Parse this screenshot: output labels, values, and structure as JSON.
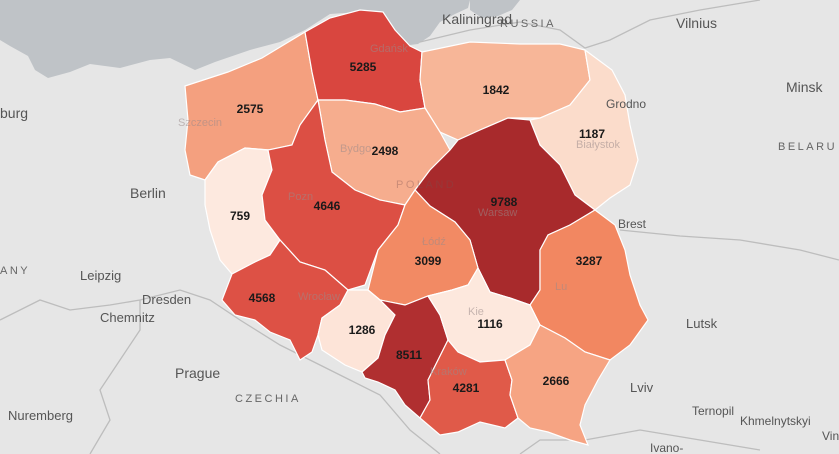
{
  "colors": {
    "sea": "#bfc3c7",
    "land": "#e6e6e6",
    "border": "#bdbdbd",
    "region_stroke": "#ffffff"
  },
  "cities": [
    {
      "id": "kaliningrad",
      "label": "Kaliningrad"
    },
    {
      "id": "vilnius",
      "label": "Vilnius"
    },
    {
      "id": "minsk",
      "label": "Minsk"
    },
    {
      "id": "grodno",
      "label": "Grodno"
    },
    {
      "id": "berlin",
      "label": "Berlin"
    },
    {
      "id": "leipzig",
      "label": "Leipzig"
    },
    {
      "id": "dresden",
      "label": "Dresden"
    },
    {
      "id": "chemnitz",
      "label": "Chemnitz"
    },
    {
      "id": "prague",
      "label": "Prague"
    },
    {
      "id": "nuremberg",
      "label": "Nuremberg"
    },
    {
      "id": "brest",
      "label": "Brest"
    },
    {
      "id": "lutsk",
      "label": "Lutsk"
    },
    {
      "id": "lviv",
      "label": "Lviv"
    },
    {
      "id": "ternopil",
      "label": "Ternopil"
    },
    {
      "id": "khmelnytskyi",
      "label": "Khmelnytskyi"
    },
    {
      "id": "ivano",
      "label": "Ivano-"
    },
    {
      "id": "hamburg-partial",
      "label": "burg"
    },
    {
      "id": "vin-partial",
      "label": "Vin"
    }
  ],
  "countries": [
    {
      "id": "russia",
      "label": "RUSSIA"
    },
    {
      "id": "belarus",
      "label": "BELARU"
    },
    {
      "id": "germany",
      "label": "ANY"
    },
    {
      "id": "czechia",
      "label": "CZECHIA"
    },
    {
      "id": "poland",
      "label": "POLAND"
    }
  ],
  "faint_labels": [
    {
      "id": "gdansk",
      "label": "Gdańsk"
    },
    {
      "id": "szczecin",
      "label": "Szczecin"
    },
    {
      "id": "bydgoszcz",
      "label": "Bydgo"
    },
    {
      "id": "bialystok",
      "label": "Białystok"
    },
    {
      "id": "poznan",
      "label": "Pozn"
    },
    {
      "id": "warsaw",
      "label": "Warsaw"
    },
    {
      "id": "lodz",
      "label": "Łódź"
    },
    {
      "id": "wroclaw",
      "label": "Wrocław"
    },
    {
      "id": "lublin",
      "label": "Lu"
    },
    {
      "id": "kielce",
      "label": "Kie"
    },
    {
      "id": "krakow",
      "label": "Kraków"
    }
  ],
  "regions": [
    {
      "id": "pomorskie",
      "value": 5285,
      "color": "#d9463f"
    },
    {
      "id": "zachodniopomorskie",
      "value": 2575,
      "color": "#f4a07f"
    },
    {
      "id": "warminsko-mazurskie",
      "value": 1842,
      "color": "#f7b698"
    },
    {
      "id": "podlaskie",
      "value": 1187,
      "color": "#fbdccb"
    },
    {
      "id": "kujawsko-pomorskie",
      "value": 2498,
      "color": "#f6ad8e"
    },
    {
      "id": "lubuskie",
      "value": 759,
      "color": "#fde9df"
    },
    {
      "id": "wielkopolskie",
      "value": 4646,
      "color": "#dc4f44"
    },
    {
      "id": "mazowieckie",
      "value": 9788,
      "color": "#a82a2c"
    },
    {
      "id": "lodzkie",
      "value": 3099,
      "color": "#f28a64"
    },
    {
      "id": "lubelskie",
      "value": 3287,
      "color": "#f28761"
    },
    {
      "id": "dolnoslaskie",
      "value": 4568,
      "color": "#dd5145"
    },
    {
      "id": "opolskie",
      "value": 1286,
      "color": "#fde4d8"
    },
    {
      "id": "slaskie",
      "value": 8511,
      "color": "#b02f30"
    },
    {
      "id": "swietokrzyskie",
      "value": 1116,
      "color": "#fde8dd"
    },
    {
      "id": "malopolskie",
      "value": 4281,
      "color": "#e05a49"
    },
    {
      "id": "podkarpackie",
      "value": 2666,
      "color": "#f6a483"
    }
  ]
}
